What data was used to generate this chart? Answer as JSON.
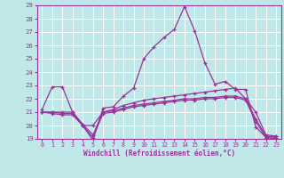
{
  "xlabel": "Windchill (Refroidissement éolien,°C)",
  "xlim": [
    -0.5,
    23.5
  ],
  "ylim": [
    19,
    29
  ],
  "yticks": [
    19,
    20,
    21,
    22,
    23,
    24,
    25,
    26,
    27,
    28,
    29
  ],
  "xticks": [
    0,
    1,
    2,
    3,
    4,
    5,
    6,
    7,
    8,
    9,
    10,
    11,
    12,
    13,
    14,
    15,
    16,
    17,
    18,
    19,
    20,
    21,
    22,
    23
  ],
  "bg_color": "#c0e8e8",
  "line_color": "#993399",
  "grid_color": "#ffffff",
  "lines": [
    {
      "x": [
        0,
        1,
        2,
        3,
        4,
        5,
        6,
        7,
        8,
        9,
        10,
        11,
        12,
        13,
        14,
        15,
        16,
        17,
        18,
        19,
        20,
        21,
        22,
        23
      ],
      "y": [
        21.2,
        22.9,
        22.9,
        21.0,
        20.0,
        18.9,
        21.3,
        21.4,
        22.2,
        22.8,
        25.0,
        25.9,
        26.6,
        27.2,
        28.9,
        27.1,
        24.7,
        23.1,
        23.3,
        22.7,
        22.7,
        19.9,
        19.1,
        19.2
      ]
    },
    {
      "x": [
        0,
        1,
        2,
        3,
        4,
        5,
        6,
        7,
        8,
        9,
        10,
        11,
        12,
        13,
        14,
        15,
        16,
        17,
        18,
        19,
        20,
        21,
        22,
        23
      ],
      "y": [
        21.0,
        20.9,
        20.8,
        20.8,
        20.0,
        20.0,
        21.0,
        21.2,
        21.5,
        21.7,
        21.9,
        22.0,
        22.1,
        22.2,
        22.3,
        22.4,
        22.5,
        22.6,
        22.7,
        22.8,
        22.0,
        21.0,
        19.3,
        19.2
      ]
    },
    {
      "x": [
        0,
        1,
        2,
        3,
        4,
        5,
        6,
        7,
        8,
        9,
        10,
        11,
        12,
        13,
        14,
        15,
        16,
        17,
        18,
        19,
        20,
        21,
        22,
        23
      ],
      "y": [
        21.0,
        21.0,
        21.0,
        21.0,
        20.1,
        19.3,
        21.0,
        21.1,
        21.3,
        21.5,
        21.6,
        21.7,
        21.8,
        21.9,
        22.0,
        22.0,
        22.1,
        22.1,
        22.2,
        22.2,
        22.0,
        20.5,
        19.2,
        19.1
      ]
    },
    {
      "x": [
        0,
        1,
        2,
        3,
        4,
        5,
        6,
        7,
        8,
        9,
        10,
        11,
        12,
        13,
        14,
        15,
        16,
        17,
        18,
        19,
        20,
        21,
        22,
        23
      ],
      "y": [
        21.0,
        21.0,
        20.9,
        20.9,
        20.0,
        19.1,
        20.9,
        21.0,
        21.2,
        21.4,
        21.5,
        21.6,
        21.7,
        21.8,
        21.9,
        21.9,
        22.0,
        22.0,
        22.1,
        22.1,
        21.9,
        20.3,
        19.1,
        19.0
      ]
    }
  ]
}
